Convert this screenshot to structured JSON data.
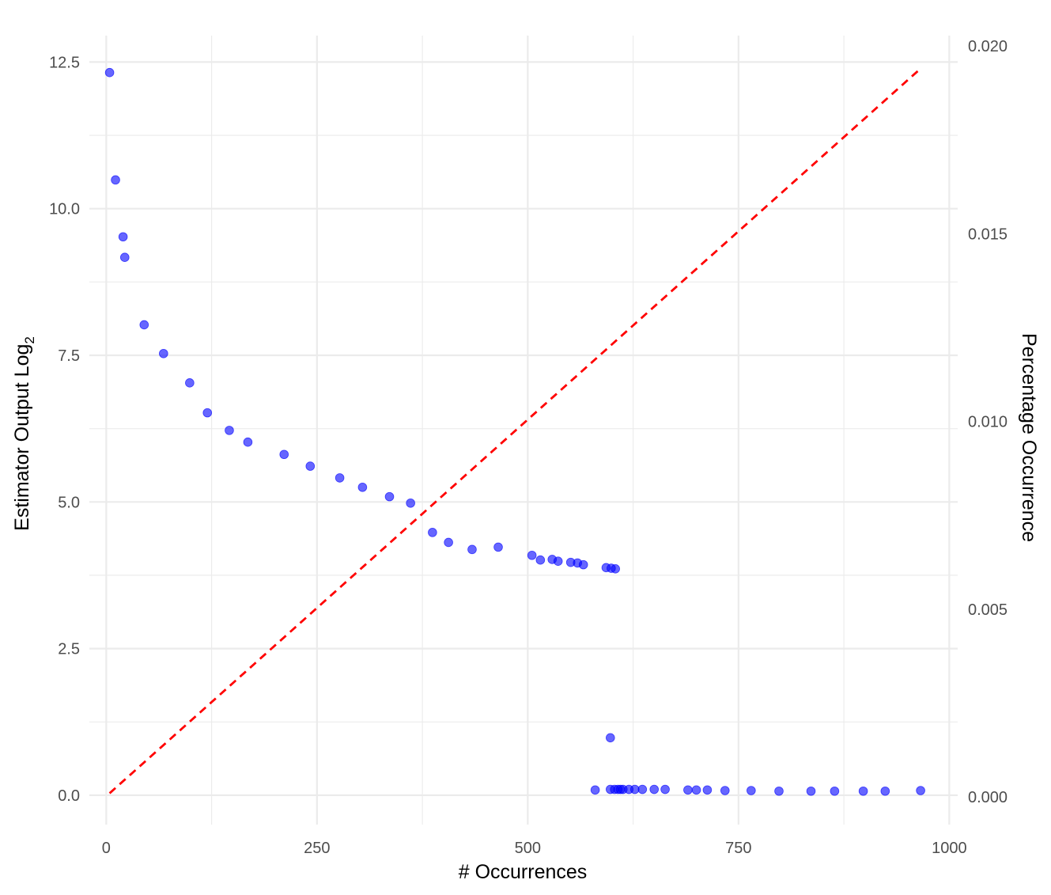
{
  "chart_data": {
    "type": "scatter",
    "title": "",
    "xlabel": "# Occurrences",
    "ylabel": "Estimator Output Log",
    "ylabel_subscript": "2",
    "y2label": "Percentage Occurrence",
    "xlim": [
      -20,
      1010
    ],
    "ylim": [
      -0.5,
      12.95
    ],
    "y2lim": [
      -0.000734,
      0.020278
    ],
    "x_ticks": [
      0,
      250,
      500,
      750,
      1000
    ],
    "x_tick_labels": [
      "0",
      "250",
      "500",
      "750",
      "1000"
    ],
    "y_ticks": [
      0,
      2.5,
      5,
      7.5,
      10,
      12.5
    ],
    "y_tick_labels": [
      "0.0",
      "2.5",
      "5.0",
      "7.5",
      "10.0",
      "12.5"
    ],
    "y2_ticks": [
      0,
      0.005,
      0.01,
      0.015,
      0.02
    ],
    "y2_tick_labels": [
      "0.000",
      "0.005",
      "0.010",
      "0.015",
      "0.020"
    ],
    "grid": true,
    "legend": "none",
    "point_color": "#0000ff",
    "line_color": "#ff0000",
    "series": [
      {
        "type": "scatter",
        "axis": "left",
        "points": [
          [
            4,
            12.32
          ],
          [
            11,
            10.49
          ],
          [
            20,
            9.52
          ],
          [
            22,
            9.17
          ],
          [
            45,
            8.02
          ],
          [
            68,
            7.53
          ],
          [
            99,
            7.03
          ],
          [
            120,
            6.52
          ],
          [
            146,
            6.22
          ],
          [
            168,
            6.02
          ],
          [
            211,
            5.81
          ],
          [
            242,
            5.61
          ],
          [
            277,
            5.41
          ],
          [
            304,
            5.25
          ],
          [
            336,
            5.09
          ],
          [
            361,
            4.98
          ],
          [
            387,
            4.48
          ],
          [
            406,
            4.31
          ],
          [
            434,
            4.19
          ],
          [
            465,
            4.23
          ],
          [
            505,
            4.09
          ],
          [
            515,
            4.01
          ],
          [
            529,
            4.02
          ],
          [
            536,
            3.99
          ],
          [
            551,
            3.97
          ],
          [
            559,
            3.96
          ],
          [
            566,
            3.93
          ],
          [
            593,
            3.88
          ],
          [
            599,
            3.87
          ],
          [
            604,
            3.86
          ],
          [
            598,
            0.98
          ],
          [
            580,
            0.09
          ],
          [
            598,
            0.1
          ],
          [
            603,
            0.1
          ],
          [
            607,
            0.1
          ],
          [
            610,
            0.1
          ],
          [
            613,
            0.1
          ],
          [
            620,
            0.1
          ],
          [
            627,
            0.1
          ],
          [
            636,
            0.1
          ],
          [
            650,
            0.1
          ],
          [
            663,
            0.1
          ],
          [
            690,
            0.09
          ],
          [
            700,
            0.09
          ],
          [
            713,
            0.09
          ],
          [
            734,
            0.08
          ],
          [
            765,
            0.08
          ],
          [
            798,
            0.07
          ],
          [
            836,
            0.07
          ],
          [
            864,
            0.07
          ],
          [
            898,
            0.07
          ],
          [
            924,
            0.07
          ],
          [
            966,
            0.08
          ]
        ]
      },
      {
        "type": "line",
        "axis": "right",
        "style": "dashed",
        "points": [
          [
            4,
            0.0001
          ],
          [
            963,
            0.01934
          ]
        ]
      }
    ]
  }
}
